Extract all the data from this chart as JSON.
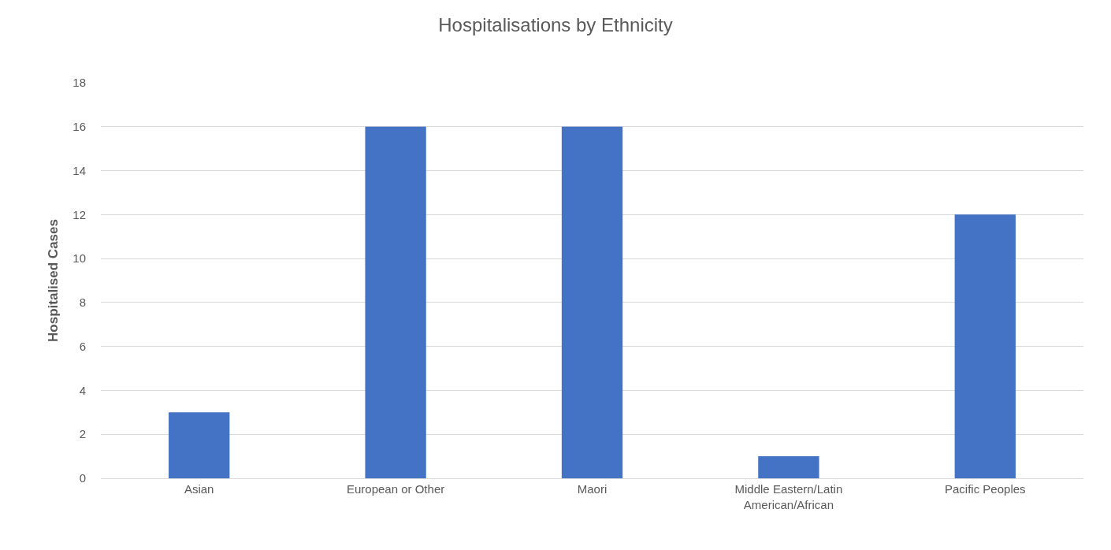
{
  "chart_data": {
    "type": "bar",
    "title": "Hospitalisations by Ethnicity",
    "ylabel": "Hospitalised Cases",
    "categories": [
      "Asian",
      "European or Other",
      "Maori",
      "Middle Eastern/Latin American/African",
      "Pacific Peoples"
    ],
    "values": [
      3,
      16,
      16,
      1,
      12
    ],
    "color": "#4472c4",
    "ylim": [
      0,
      18
    ],
    "yticks": [
      0,
      2,
      4,
      6,
      8,
      10,
      12,
      14,
      16,
      18
    ],
    "grid": "y",
    "legend": false
  }
}
